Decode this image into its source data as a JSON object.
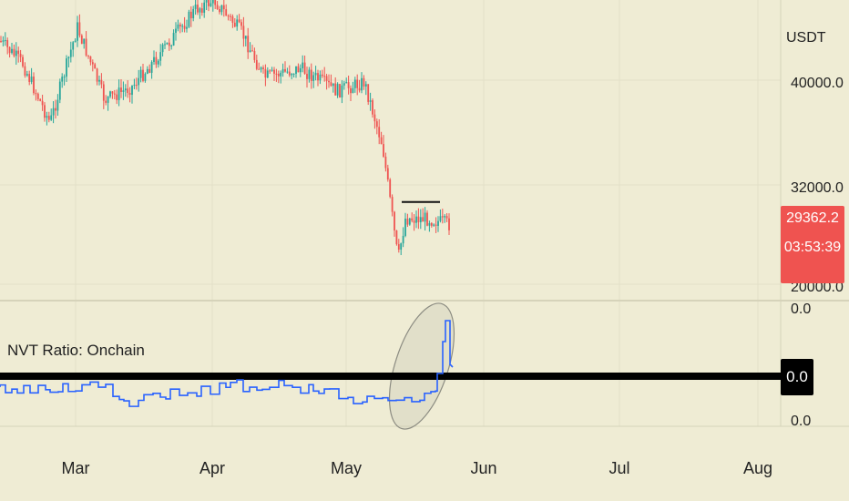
{
  "chart_data": {
    "type": "candlestick",
    "currency": "USDT",
    "price_ticks": [
      "40000.0",
      "32000.0",
      "20000.0"
    ],
    "current_price": "29362.2",
    "countdown": "03:53:39",
    "x_ticks": [
      "Mar",
      "Apr",
      "May",
      "Jun",
      "Jul",
      "Aug"
    ],
    "resistance_level": 30700,
    "indicator": {
      "title": "NVT Ratio: Onchain",
      "value_label": "0.0",
      "top_tick": "0.0",
      "bottom_tick": "0.0"
    }
  },
  "colors": {
    "background": "#efecd4",
    "up": "#26a69a",
    "down": "#ef5350",
    "indicator_line": "#2962ff",
    "zero_line": "#000000"
  }
}
